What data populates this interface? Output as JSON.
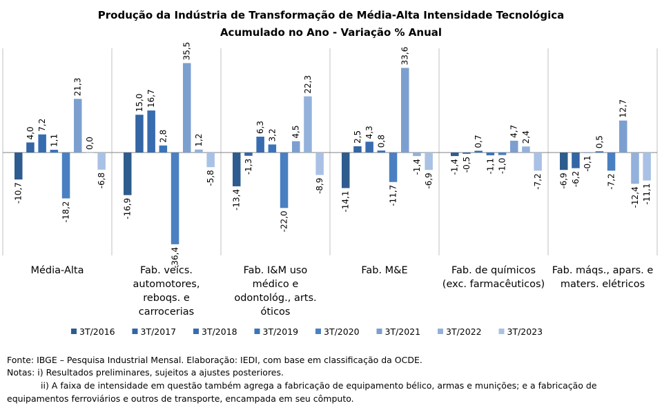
{
  "chart_data": {
    "type": "bar",
    "title": "Produção da Indústria de Transformação de Média-Alta Intensidade Tecnológica",
    "subtitle": "Acumulado no Ano - Variação % Anual",
    "categories": [
      [
        "Média-Alta"
      ],
      [
        "Fab. veícs.",
        "automotores,",
        "reboqs. e",
        "carrocerias"
      ],
      [
        "Fab. I&M uso",
        "médico e",
        "odontológ., arts.",
        "óticos"
      ],
      [
        "Fab. M&E"
      ],
      [
        "Fab. de químicos",
        "(exc. farmacêuticos)"
      ],
      [
        "Fab. máqs., apars. e",
        "maters. elétricos"
      ]
    ],
    "series": [
      {
        "name": "3T/2016",
        "color": "#2E5C8E",
        "values": [
          -10.7,
          -16.9,
          -13.4,
          -14.1,
          -1.4,
          -6.9
        ],
        "labels": [
          "-10,7",
          "-16,9",
          "-13,4",
          "-14,1",
          "-1,4",
          "-6,9"
        ]
      },
      {
        "name": "3T/2017",
        "color": "#3465A4",
        "values": [
          4.0,
          15.0,
          -1.3,
          2.5,
          -0.5,
          -6.2
        ],
        "labels": [
          "4,0",
          "15,0",
          "-1,3",
          "2,5",
          "-0,5",
          "-6,2"
        ]
      },
      {
        "name": "3T/2018",
        "color": "#386CB0",
        "values": [
          7.2,
          16.7,
          6.3,
          4.3,
          0.7,
          -0.1
        ],
        "labels": [
          "7,2",
          "16,7",
          "6,3",
          "4,3",
          "0,7",
          "-0,1"
        ]
      },
      {
        "name": "3T/2019",
        "color": "#3B74BA",
        "values": [
          1.1,
          2.8,
          3.2,
          0.8,
          -1.1,
          0.5
        ],
        "labels": [
          "1,1",
          "2,8",
          "3,2",
          "0,8",
          "-1,1",
          "0,5"
        ]
      },
      {
        "name": "3T/2020",
        "color": "#4A80C2",
        "values": [
          -18.2,
          -36.4,
          -22.0,
          -11.7,
          -1.0,
          -7.2
        ],
        "labels": [
          "-18,2",
          "-36,4",
          "-22,0",
          "-11,7",
          "-1,0",
          "-7,2"
        ]
      },
      {
        "name": "3T/2021",
        "color": "#7C9FCF",
        "values": [
          21.3,
          35.5,
          4.5,
          33.6,
          4.7,
          12.7
        ],
        "labels": [
          "21,3",
          "35,5",
          "4,5",
          "33,6",
          "4,7",
          "12,7"
        ]
      },
      {
        "name": "3T/2022",
        "color": "#93B1DA",
        "values": [
          0.0,
          1.2,
          22.3,
          -1.4,
          2.4,
          -12.4
        ],
        "labels": [
          "0,0",
          "1,2",
          "22,3",
          "-1,4",
          "2,4",
          "-12,4"
        ]
      },
      {
        "name": "3T/2023",
        "color": "#A9C1E4",
        "values": [
          -6.8,
          -5.8,
          -8.9,
          -6.9,
          -7.2,
          -11.1
        ],
        "labels": [
          "-6,8",
          "-5,8",
          "-8,9",
          "-6,9",
          "-7,2",
          "-11,1"
        ]
      }
    ],
    "legend_position": "bottom",
    "grid": false
  },
  "notes": {
    "source": "Fonte: IBGE – Pesquisa Industrial Mensal. Elaboração: IEDI, com base em classificação da OCDE.",
    "note1": "Notas: i) Resultados preliminares, sujeitos a ajustes posteriores.",
    "note2": "ii) A faixa de intensidade em questão também  agrega a fabricação de equipamento  bélico, armas e munições; e a fabricação de",
    "note3": "equipamentos ferroviários e outros de transporte, encampada em seu cômputo."
  }
}
